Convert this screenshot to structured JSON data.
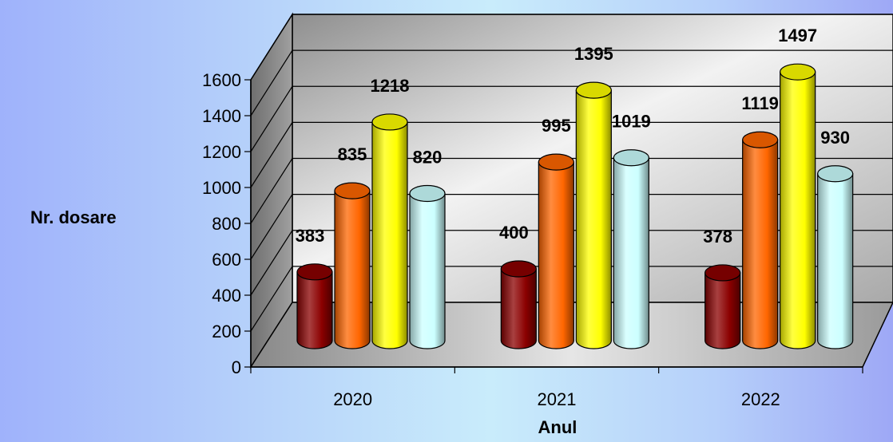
{
  "chart_data": {
    "type": "bar",
    "style": "3d-cylinder",
    "categories": [
      "2020",
      "2021",
      "2022"
    ],
    "series": [
      {
        "color": "#8b0000",
        "values": [
          383,
          400,
          378
        ]
      },
      {
        "color": "#ff6600",
        "values": [
          835,
          995,
          1119
        ]
      },
      {
        "color": "#ffff00",
        "values": [
          1218,
          1395,
          1497
        ]
      },
      {
        "color": "#ccffff",
        "values": [
          820,
          1019,
          930
        ]
      }
    ],
    "y_ticks": [
      "0",
      "200",
      "400",
      "600",
      "800",
      "1000",
      "1200",
      "1400",
      "1600"
    ],
    "ylim": [
      0,
      1600
    ],
    "xlabel": "Anul",
    "ylabel": "Nr. dosare",
    "legend": "none",
    "grid": true
  }
}
